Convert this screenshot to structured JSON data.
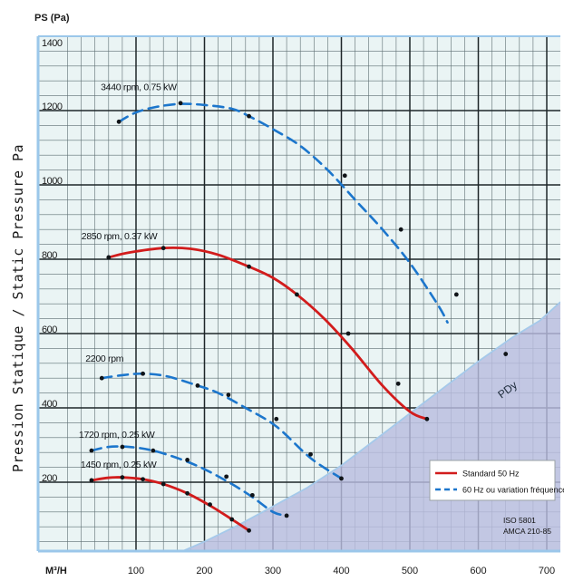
{
  "chart_data": {
    "type": "line",
    "title": "",
    "ylabel_top": "PS (Pa)",
    "ylabel_side": "Pression Statique / Static Pressure Pa",
    "xlabel": "M³/H",
    "xlim": [
      0,
      720
    ],
    "ylim": [
      -50,
      1410
    ],
    "x_ticks": [
      100,
      200,
      300,
      400,
      500,
      600,
      700
    ],
    "y_ticks": [
      200,
      400,
      600,
      800,
      1000,
      1200,
      1400
    ],
    "grid": true,
    "legend_position": "bottom-right",
    "standards_note": [
      "ISO 5801",
      "AMCA 210-85"
    ],
    "region_label": "PDy",
    "region_curve": {
      "x": [
        60,
        100,
        150,
        200,
        250,
        300,
        350,
        400,
        450,
        500,
        550,
        600,
        650,
        690,
        720
      ],
      "y": [
        -55,
        -35,
        0,
        40,
        85,
        135,
        185,
        245,
        315,
        385,
        455,
        525,
        590,
        635,
        685
      ]
    },
    "legend": [
      {
        "label": "Standard 50 Hz",
        "color": "#d21c1c",
        "style": "solid"
      },
      {
        "label": "60 Hz ou variation fréquence",
        "color": "#1c76cc",
        "style": "dashed"
      }
    ],
    "series": [
      {
        "name": "3440 rpm, 0.75 kW",
        "style": "dashed",
        "color": "#1c76cc",
        "x": [
          75,
          100,
          130,
          165,
          200,
          240,
          265,
          300,
          340,
          380,
          420,
          460,
          500,
          540,
          555
        ],
        "y": [
          1170,
          1195,
          1210,
          1218,
          1215,
          1205,
          1185,
          1150,
          1105,
          1040,
          960,
          880,
          790,
          680,
          630
        ],
        "markers": [
          [
            75,
            1170
          ],
          [
            165,
            1220
          ],
          [
            265,
            1185
          ],
          [
            405,
            1025
          ],
          [
            487,
            880
          ],
          [
            568,
            705
          ],
          [
            640,
            545
          ]
        ]
      },
      {
        "name": "2850 rpm, 0.37 kW",
        "style": "solid",
        "color": "#d21c1c",
        "x": [
          60,
          90,
          140,
          180,
          220,
          265,
          300,
          335,
          375,
          415,
          460,
          500,
          525
        ],
        "y": [
          805,
          818,
          830,
          828,
          812,
          780,
          750,
          705,
          640,
          560,
          460,
          390,
          370
        ],
        "markers": [
          [
            60,
            805
          ],
          [
            140,
            830
          ],
          [
            265,
            780
          ],
          [
            335,
            705
          ],
          [
            410,
            600
          ],
          [
            483,
            465
          ],
          [
            525,
            370
          ]
        ]
      },
      {
        "name": "2200 rpm",
        "style": "dashed",
        "color": "#1c76cc",
        "x": [
          50,
          80,
          110,
          145,
          190,
          220,
          260,
          305,
          355,
          400
        ],
        "y": [
          480,
          488,
          492,
          485,
          460,
          440,
          400,
          350,
          265,
          210
        ],
        "markers": [
          [
            50,
            480
          ],
          [
            110,
            492
          ],
          [
            190,
            460
          ],
          [
            235,
            435
          ],
          [
            305,
            370
          ],
          [
            355,
            275
          ],
          [
            400,
            210
          ]
        ]
      },
      {
        "name": "1720 rpm, 0.25 kW",
        "style": "dashed",
        "color": "#1c76cc",
        "x": [
          35,
          60,
          90,
          125,
          165,
          200,
          240,
          270,
          300,
          320
        ],
        "y": [
          285,
          295,
          295,
          285,
          262,
          235,
          195,
          160,
          120,
          110
        ],
        "markers": [
          [
            35,
            285
          ],
          [
            80,
            295
          ],
          [
            125,
            285
          ],
          [
            175,
            260
          ],
          [
            232,
            215
          ],
          [
            270,
            165
          ],
          [
            320,
            110
          ]
        ]
      },
      {
        "name": "1450 rpm, 0.25 kW",
        "style": "solid",
        "color": "#d21c1c",
        "x": [
          35,
          60,
          80,
          110,
          140,
          175,
          210,
          240,
          265
        ],
        "y": [
          205,
          212,
          213,
          208,
          195,
          170,
          135,
          100,
          70
        ],
        "markers": [
          [
            35,
            205
          ],
          [
            80,
            213
          ],
          [
            110,
            208
          ],
          [
            140,
            195
          ],
          [
            175,
            170
          ],
          [
            208,
            140
          ],
          [
            240,
            100
          ],
          [
            265,
            70
          ]
        ]
      }
    ]
  }
}
